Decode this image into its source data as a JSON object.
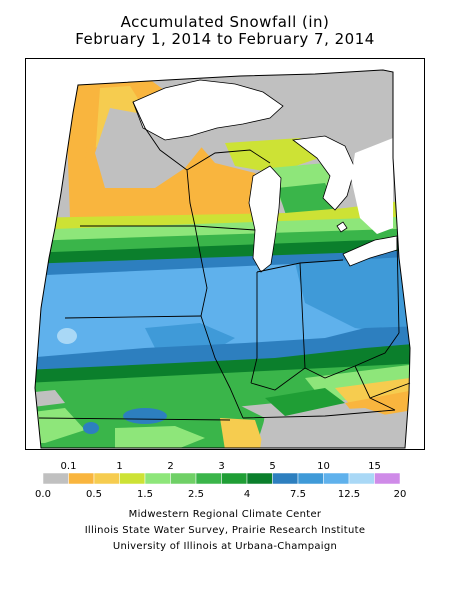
{
  "title_line1": "Accumulated Snowfall (in)",
  "title_line2": "February 1, 2014 to February 7, 2014",
  "legend": {
    "upper_labels": [
      "0.1",
      "1",
      "2",
      "3",
      "5",
      "10",
      "15"
    ],
    "lower_labels": [
      "0.0",
      "0.5",
      "1.5",
      "2.5",
      "4",
      "7.5",
      "12.5",
      "20"
    ],
    "bins": [
      {
        "range": "0.0-0.1",
        "color": "#c0c0c0"
      },
      {
        "range": "0.1-0.5",
        "color": "#f9b53e"
      },
      {
        "range": "0.5-1",
        "color": "#f6cc4f"
      },
      {
        "range": "1-1.5",
        "color": "#cde235"
      },
      {
        "range": "1.5-2",
        "color": "#8ee67a"
      },
      {
        "range": "2-2.5",
        "color": "#6fd066"
      },
      {
        "range": "2.5-3",
        "color": "#3ab54a"
      },
      {
        "range": "3-4",
        "color": "#1f9e35"
      },
      {
        "range": "4-5",
        "color": "#0b7f2c"
      },
      {
        "range": "5-7.5",
        "color": "#2d7fbf"
      },
      {
        "range": "7.5-10",
        "color": "#3f9ad8"
      },
      {
        "range": "10-12.5",
        "color": "#5fb1ec"
      },
      {
        "range": "12.5-15",
        "color": "#a9d8f6"
      },
      {
        "range": "15-20",
        "color": "#cf8be8"
      }
    ]
  },
  "credits": [
    "Midwestern Regional Climate Center",
    "Illinois State Water Survey, Prairie Research Institute",
    "University of Illinois at Urbana-Champaign"
  ]
}
